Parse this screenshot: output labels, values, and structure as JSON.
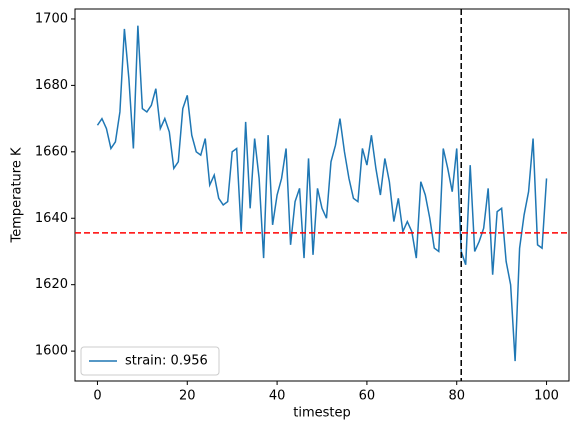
{
  "chart_data": {
    "type": "line",
    "xlabel": "timestep",
    "ylabel": "Temperature K",
    "x": [
      0,
      1,
      2,
      3,
      4,
      5,
      6,
      7,
      8,
      9,
      10,
      11,
      12,
      13,
      14,
      15,
      16,
      17,
      18,
      19,
      20,
      21,
      22,
      23,
      24,
      25,
      26,
      27,
      28,
      29,
      30,
      31,
      32,
      33,
      34,
      35,
      36,
      37,
      38,
      39,
      40,
      41,
      42,
      43,
      44,
      45,
      46,
      47,
      48,
      49,
      50,
      51,
      52,
      53,
      54,
      55,
      56,
      57,
      58,
      59,
      60,
      61,
      62,
      63,
      64,
      65,
      66,
      67,
      68,
      69,
      70,
      71,
      72,
      73,
      74,
      75,
      76,
      77,
      78,
      79,
      80,
      81,
      82,
      83,
      84,
      85,
      86,
      87,
      88,
      89,
      90,
      91,
      92,
      93,
      94,
      95,
      96,
      97,
      98,
      99,
      100
    ],
    "series": [
      {
        "name": "strain: 0.956",
        "color": "#1f77b4",
        "values": [
          1668,
          1670,
          1667,
          1661,
          1663,
          1672,
          1697,
          1682,
          1661,
          1698,
          1673,
          1672,
          1674,
          1679,
          1667,
          1670,
          1666,
          1655,
          1657,
          1673,
          1677,
          1665,
          1660,
          1659,
          1664,
          1650,
          1653,
          1646,
          1644,
          1645,
          1660,
          1661,
          1636,
          1669,
          1643,
          1664,
          1652,
          1628,
          1665,
          1638,
          1647,
          1652,
          1661,
          1632,
          1645,
          1649,
          1628,
          1658,
          1629,
          1649,
          1643,
          1640,
          1657,
          1662,
          1670,
          1660,
          1652,
          1646,
          1645,
          1661,
          1656,
          1665,
          1655,
          1647,
          1658,
          1651,
          1639,
          1646,
          1636,
          1639,
          1636,
          1628,
          1651,
          1647,
          1640,
          1631,
          1630,
          1661,
          1655,
          1648,
          1661,
          1630,
          1626,
          1656,
          1630,
          1633,
          1637,
          1649,
          1623,
          1642,
          1643,
          1627,
          1620,
          1597,
          1631,
          1641,
          1648,
          1664,
          1632,
          1631,
          1652
        ]
      }
    ],
    "hline": {
      "y": 1635.6,
      "color": "#ff0000"
    },
    "vline": {
      "x": 81,
      "color": "#000000"
    },
    "xlim": [
      -5,
      105
    ],
    "ylim": [
      1591,
      1703
    ],
    "xticks": [
      0,
      20,
      40,
      60,
      80,
      100
    ],
    "yticks": [
      1600,
      1620,
      1640,
      1660,
      1680,
      1700
    ],
    "legend": "lower left"
  }
}
